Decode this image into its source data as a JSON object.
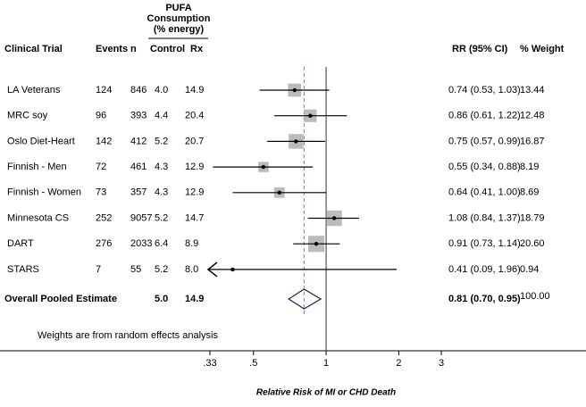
{
  "chart_data": {
    "type": "forest",
    "headers": {
      "trial": "Clinical Trial",
      "events": "Events",
      "n": "n",
      "pufa": [
        "PUFA",
        "Consumption",
        "(% energy)"
      ],
      "control": "Control",
      "rx": "Rx",
      "rr": "RR  (95% CI)",
      "weight": "% Weight"
    },
    "categories": [
      "LA Veterans",
      "MRC soy",
      "Oslo Diet-Heart",
      "Finnish - Men",
      "Finnish - Women",
      "Minnesota CS",
      "DART",
      "STARS"
    ],
    "events": [
      124,
      96,
      142,
      72,
      73,
      252,
      276,
      7
    ],
    "n": [
      846,
      393,
      412,
      461,
      357,
      9057,
      2033,
      55
    ],
    "control": [
      "4.0",
      "4.4",
      "5.2",
      "4.3",
      "4.3",
      "5.2",
      "6.4",
      "5.2"
    ],
    "rx": [
      "14.9",
      "20.4",
      "20.7",
      "12.9",
      "12.9",
      "14.7",
      "8.9",
      "8.0"
    ],
    "values": [
      0.74,
      0.86,
      0.75,
      0.55,
      0.64,
      1.08,
      0.91,
      0.41
    ],
    "lower": [
      0.53,
      0.61,
      0.57,
      0.34,
      0.41,
      0.84,
      0.73,
      0.09
    ],
    "upper": [
      1.03,
      1.22,
      0.99,
      0.88,
      1.0,
      1.37,
      1.14,
      1.96
    ],
    "value_labels": [
      "0.74 (0.53, 1.03)",
      "0.86 (0.61, 1.22)",
      "0.75 (0.57, 0.99)",
      "0.55 (0.34, 0.88)",
      "0.64 (0.41, 1.00)",
      "1.08 (0.84, 1.37)",
      "0.91 (0.73, 1.14)",
      "0.41 (0.09, 1.96)"
    ],
    "weights": [
      13.44,
      12.48,
      16.87,
      8.19,
      8.69,
      18.79,
      20.6,
      0.94
    ],
    "weight_labels": [
      "13.44",
      "12.48",
      "16.87",
      "8.19",
      "8.69",
      "18.79",
      "20.60",
      "0.94"
    ],
    "overall": {
      "label": "Overall Pooled Estimate",
      "control": "5.0",
      "rx": "14.9",
      "value": 0.81,
      "lower": 0.7,
      "upper": 0.95,
      "value_label": "0.81 (0.70, 0.95)",
      "weight": {
        "value": 100,
        "label": "100.00"
      }
    },
    "note": "Weights are from random effects analysis",
    "xlabel": "Relative Risk of MI or CHD Death",
    "log_x": true,
    "xlim": [
      0.33,
      3
    ],
    "xticks": [
      {
        "value": 0.33,
        "label": ".33"
      },
      {
        "value": 0.5,
        "label": ".5"
      },
      1,
      2,
      3
    ],
    "box_color": "#bbbbbb",
    "diamond_color": "#1f2a5c",
    "ref_line_color": "#b07060"
  }
}
